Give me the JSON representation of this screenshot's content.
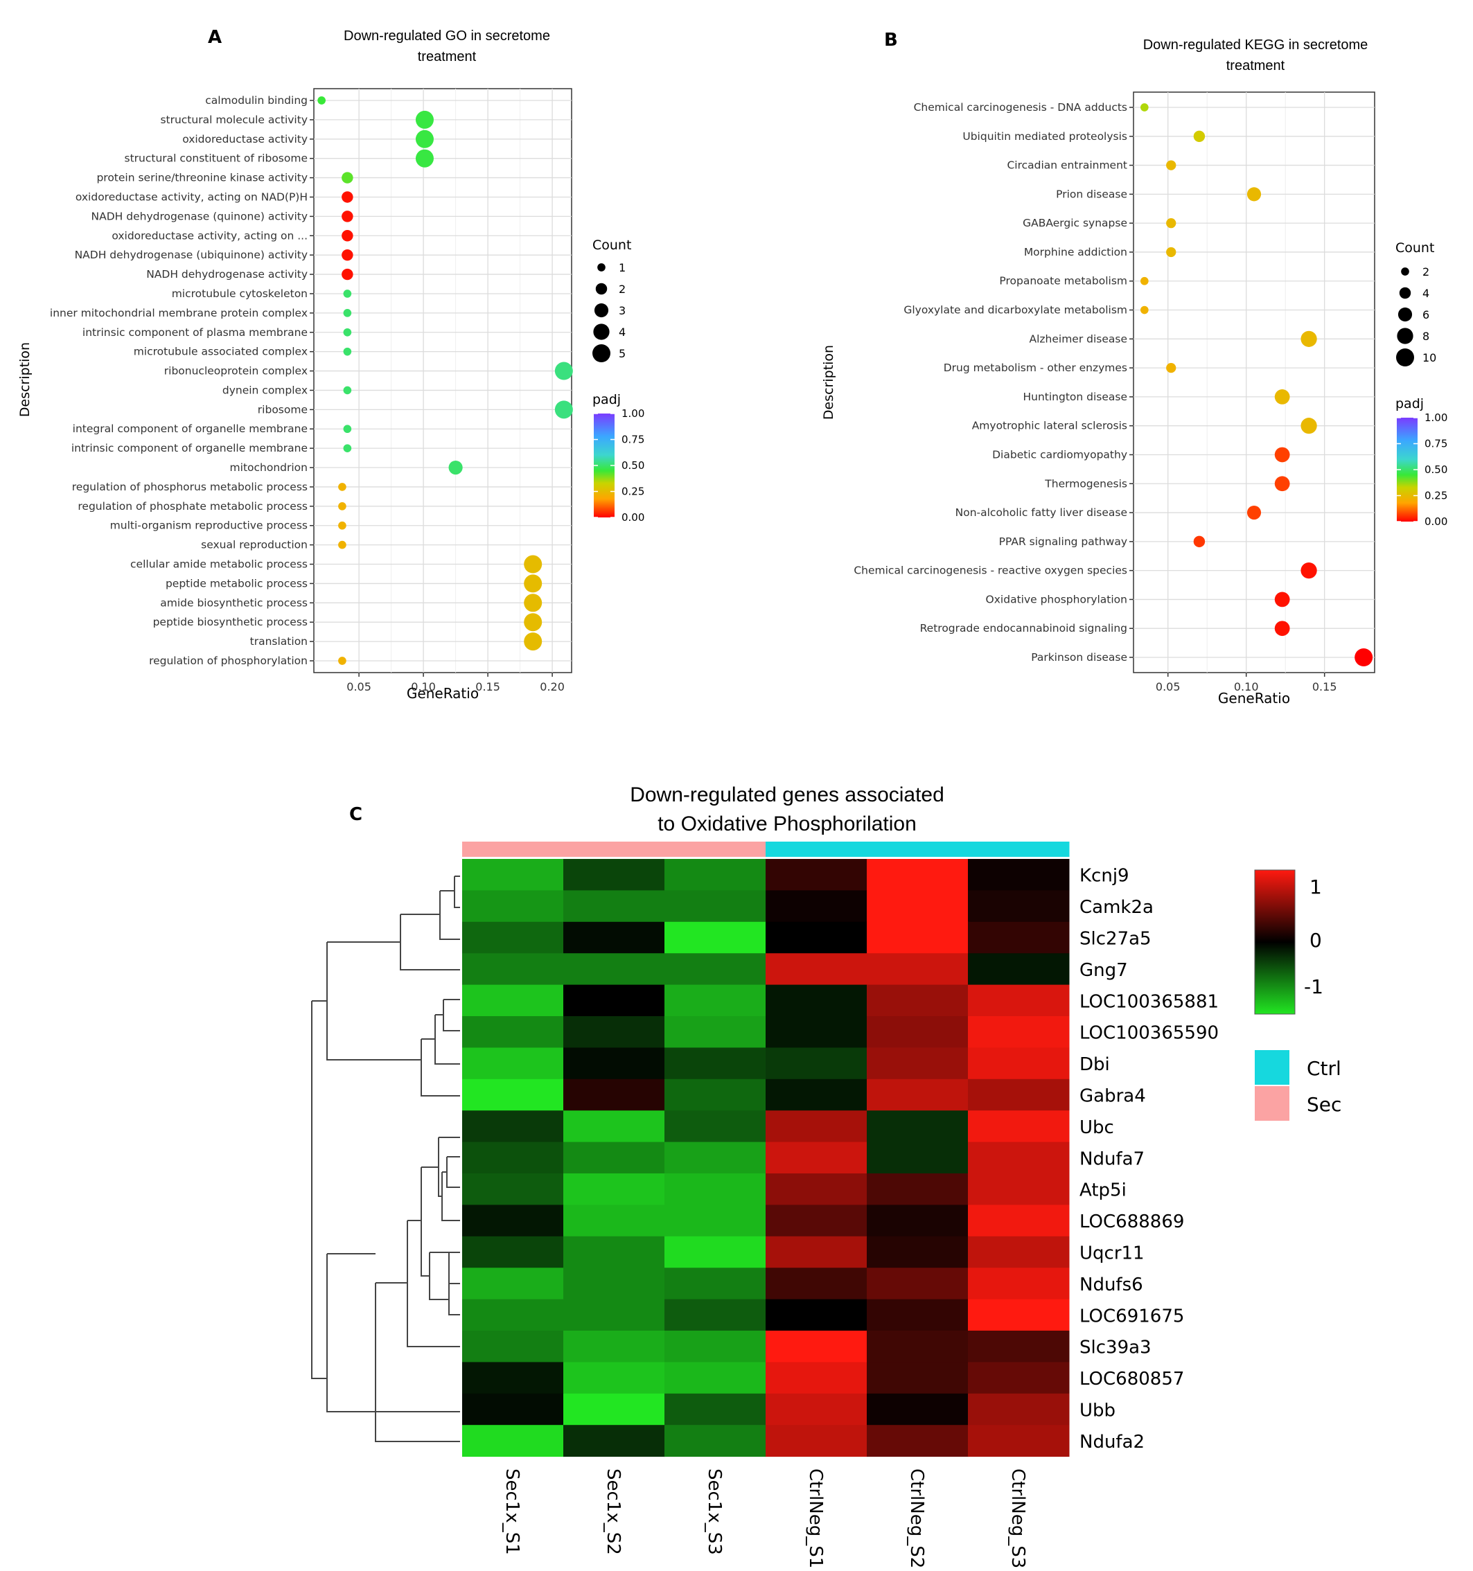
{
  "panel_letters": {
    "a": "A",
    "b": "B",
    "c": "C"
  },
  "colors": {
    "padj_gradient": [
      "#ff0000",
      "#ffa500",
      "#c8d400",
      "#38e838",
      "#3dd6ce",
      "#3ba7ff",
      "#7a3cff"
    ],
    "heat_low": "#22e622",
    "heat_mid": "#000000",
    "heat_high": "#ff1a10",
    "ctrl": "#16d8de",
    "sec": "#fba3a3"
  },
  "chart_data": [
    {
      "id": "A",
      "type": "scatter",
      "title_lines": [
        "Down-regulated GO in secretome",
        "treatment"
      ],
      "xlabel": "GeneRatio",
      "ylabel": "Description",
      "xlim": [
        0.015,
        0.215
      ],
      "xticks": [
        0.05,
        0.1,
        0.15,
        0.2
      ],
      "xtick_labels": [
        "0.05",
        "0.10",
        "0.15",
        "0.20"
      ],
      "count_legend": {
        "title": "Count",
        "values": [
          1,
          2,
          3,
          4,
          5
        ],
        "labels": [
          "1",
          "2",
          "3",
          "4",
          "5"
        ],
        "scale_max": 5
      },
      "padj_legend": {
        "title": "padj",
        "ticks": [
          1.0,
          0.75,
          0.5,
          0.25,
          0.0
        ],
        "labels": [
          "1.00",
          "0.75",
          "0.50",
          "0.25",
          "0.00"
        ]
      },
      "points": [
        {
          "term": "calmodulin binding",
          "ratio": 0.021,
          "count": 1,
          "padj": 0.45
        },
        {
          "term": "structural molecule activity",
          "ratio": 0.101,
          "count": 5,
          "padj": 0.46
        },
        {
          "term": "oxidoreductase activity",
          "ratio": 0.101,
          "count": 5,
          "padj": 0.46
        },
        {
          "term": "structural constituent of ribosome",
          "ratio": 0.101,
          "count": 5,
          "padj": 0.46
        },
        {
          "term": "protein serine/threonine kinase activity",
          "ratio": 0.041,
          "count": 2,
          "padj": 0.42
        },
        {
          "term": "oxidoreductase activity, acting on NAD(P)H",
          "ratio": 0.041,
          "count": 2,
          "padj": 0.02
        },
        {
          "term": "NADH dehydrogenase (quinone) activity",
          "ratio": 0.041,
          "count": 2,
          "padj": 0.02
        },
        {
          "term": "oxidoreductase activity, acting on ...",
          "ratio": 0.041,
          "count": 2,
          "padj": 0.02
        },
        {
          "term": "NADH dehydrogenase (ubiquinone) activity",
          "ratio": 0.041,
          "count": 2,
          "padj": 0.02
        },
        {
          "term": "NADH dehydrogenase activity",
          "ratio": 0.041,
          "count": 2,
          "padj": 0.02
        },
        {
          "term": "microtubule cytoskeleton",
          "ratio": 0.041,
          "count": 1,
          "padj": 0.5
        },
        {
          "term": "inner mitochondrial membrane protein complex",
          "ratio": 0.041,
          "count": 1,
          "padj": 0.5
        },
        {
          "term": "intrinsic component of plasma membrane",
          "ratio": 0.041,
          "count": 1,
          "padj": 0.5
        },
        {
          "term": "microtubule associated complex",
          "ratio": 0.041,
          "count": 1,
          "padj": 0.5
        },
        {
          "term": "ribonucleoprotein complex",
          "ratio": 0.209,
          "count": 5,
          "padj": 0.52
        },
        {
          "term": "dynein complex",
          "ratio": 0.041,
          "count": 1,
          "padj": 0.5
        },
        {
          "term": "ribosome",
          "ratio": 0.209,
          "count": 5,
          "padj": 0.52
        },
        {
          "term": "integral component of organelle membrane",
          "ratio": 0.041,
          "count": 1,
          "padj": 0.5
        },
        {
          "term": "intrinsic component of organelle membrane",
          "ratio": 0.041,
          "count": 1,
          "padj": 0.5
        },
        {
          "term": "mitochondrion",
          "ratio": 0.125,
          "count": 3,
          "padj": 0.5
        },
        {
          "term": "regulation of phosphorus metabolic process",
          "ratio": 0.037,
          "count": 1,
          "padj": 0.22
        },
        {
          "term": "regulation of phosphate metabolic process",
          "ratio": 0.037,
          "count": 1,
          "padj": 0.22
        },
        {
          "term": "multi-organism reproductive process",
          "ratio": 0.037,
          "count": 1,
          "padj": 0.22
        },
        {
          "term": "sexual reproduction",
          "ratio": 0.037,
          "count": 1,
          "padj": 0.22
        },
        {
          "term": "cellular amide metabolic process",
          "ratio": 0.185,
          "count": 5,
          "padj": 0.25
        },
        {
          "term": "peptide metabolic process",
          "ratio": 0.185,
          "count": 5,
          "padj": 0.25
        },
        {
          "term": "amide biosynthetic process",
          "ratio": 0.185,
          "count": 5,
          "padj": 0.25
        },
        {
          "term": "peptide biosynthetic process",
          "ratio": 0.185,
          "count": 5,
          "padj": 0.25
        },
        {
          "term": "translation",
          "ratio": 0.185,
          "count": 5,
          "padj": 0.25
        },
        {
          "term": "regulation of phosphorylation",
          "ratio": 0.037,
          "count": 1,
          "padj": 0.22
        }
      ]
    },
    {
      "id": "B",
      "type": "scatter",
      "title_lines": [
        "Down-regulated KEGG in secretome",
        "treatment"
      ],
      "xlabel": "GeneRatio",
      "ylabel": "Description",
      "xlim": [
        0.028,
        0.182
      ],
      "xticks": [
        0.05,
        0.1,
        0.15
      ],
      "xtick_labels": [
        "0.05",
        "0.10",
        "0.15"
      ],
      "count_legend": {
        "title": "Count",
        "values": [
          2,
          4,
          6,
          8,
          10
        ],
        "labels": [
          "2",
          "4",
          "6",
          "8",
          "10"
        ],
        "scale_max": 10
      },
      "padj_legend": {
        "title": "padj",
        "ticks": [
          1.0,
          0.75,
          0.5,
          0.25,
          0.0
        ],
        "labels": [
          "1.00",
          "0.75",
          "0.50",
          "0.25",
          "0.00"
        ]
      },
      "points": [
        {
          "term": "Chemical carcinogenesis - DNA adducts",
          "ratio": 0.035,
          "count": 2,
          "padj": 0.35
        },
        {
          "term": "Ubiquitin mediated proteolysis",
          "ratio": 0.07,
          "count": 4,
          "padj": 0.3
        },
        {
          "term": "Circadian entrainment",
          "ratio": 0.052,
          "count": 3,
          "padj": 0.24
        },
        {
          "term": "Prion disease",
          "ratio": 0.105,
          "count": 6,
          "padj": 0.24
        },
        {
          "term": "GABAergic synapse",
          "ratio": 0.052,
          "count": 3,
          "padj": 0.24
        },
        {
          "term": "Morphine addiction",
          "ratio": 0.052,
          "count": 3,
          "padj": 0.24
        },
        {
          "term": "Propanoate metabolism",
          "ratio": 0.035,
          "count": 2,
          "padj": 0.22
        },
        {
          "term": "Glyoxylate and dicarboxylate metabolism",
          "ratio": 0.035,
          "count": 2,
          "padj": 0.22
        },
        {
          "term": "Alzheimer disease",
          "ratio": 0.14,
          "count": 8,
          "padj": 0.24
        },
        {
          "term": "Drug metabolism - other enzymes",
          "ratio": 0.052,
          "count": 3,
          "padj": 0.22
        },
        {
          "term": "Huntington disease",
          "ratio": 0.123,
          "count": 7,
          "padj": 0.24
        },
        {
          "term": "Amyotrophic lateral sclerosis",
          "ratio": 0.14,
          "count": 8,
          "padj": 0.24
        },
        {
          "term": "Diabetic cardiomyopathy",
          "ratio": 0.123,
          "count": 7,
          "padj": 0.07
        },
        {
          "term": "Thermogenesis",
          "ratio": 0.123,
          "count": 7,
          "padj": 0.07
        },
        {
          "term": "Non-alcoholic fatty liver disease",
          "ratio": 0.105,
          "count": 6,
          "padj": 0.07
        },
        {
          "term": "PPAR signaling pathway",
          "ratio": 0.07,
          "count": 4,
          "padj": 0.06
        },
        {
          "term": "Chemical carcinogenesis - reactive oxygen species",
          "ratio": 0.14,
          "count": 8,
          "padj": 0.02
        },
        {
          "term": "Oxidative phosphorylation",
          "ratio": 0.123,
          "count": 7,
          "padj": 0.02
        },
        {
          "term": "Retrograde endocannabinoid signaling",
          "ratio": 0.123,
          "count": 7,
          "padj": 0.02
        },
        {
          "term": "Parkinson disease",
          "ratio": 0.175,
          "count": 10,
          "padj": 0.0
        }
      ]
    },
    {
      "id": "C",
      "type": "heatmap",
      "title_lines": [
        "Down-regulated genes associated",
        "to Oxidative Phosphorilation"
      ],
      "columns": [
        "Sec1x_S1",
        "Sec1x_S2",
        "Sec1x_S3",
        "CtrlNeg_S1",
        "CtrlNeg_S2",
        "CtrlNeg_S3"
      ],
      "column_groups": [
        "Sec",
        "Sec",
        "Sec",
        "Ctrl",
        "Ctrl",
        "Ctrl"
      ],
      "rows": [
        "Kcnj9",
        "Camk2a",
        "Slc27a5",
        "Gng7",
        "LOC100365881",
        "LOC100365590",
        "Dbi",
        "Gabra4",
        "Ubc",
        "Ndufa7",
        "Atp5i",
        "LOC688869",
        "Uqcr11",
        "Ndufs6",
        "LOC691675",
        "Slc39a3",
        "LOC680857",
        "Ubb",
        "Ndufa2"
      ],
      "values": [
        [
          -0.75,
          -0.3,
          -0.6,
          0.2,
          1.0,
          0.05
        ],
        [
          -0.65,
          -0.55,
          -0.55,
          0.05,
          1.0,
          0.1
        ],
        [
          -0.45,
          -0.05,
          -1.0,
          0.0,
          1.0,
          0.2
        ],
        [
          -0.55,
          -0.55,
          -0.55,
          0.8,
          0.8,
          -0.1
        ],
        [
          -0.85,
          0.0,
          -0.75,
          -0.1,
          0.6,
          0.85
        ],
        [
          -0.6,
          -0.2,
          -0.7,
          -0.1,
          0.55,
          0.95
        ],
        [
          -0.85,
          -0.05,
          -0.3,
          -0.25,
          0.6,
          0.9
        ],
        [
          -1.0,
          0.15,
          -0.45,
          -0.1,
          0.75,
          0.65
        ],
        [
          -0.25,
          -0.85,
          -0.4,
          0.65,
          -0.2,
          0.95
        ],
        [
          -0.35,
          -0.6,
          -0.7,
          0.8,
          -0.2,
          0.8
        ],
        [
          -0.4,
          -0.85,
          -0.8,
          0.55,
          0.3,
          0.8
        ],
        [
          -0.1,
          -0.8,
          -0.8,
          0.35,
          0.1,
          0.95
        ],
        [
          -0.3,
          -0.6,
          -0.95,
          0.65,
          0.15,
          0.75
        ],
        [
          -0.75,
          -0.6,
          -0.55,
          0.25,
          0.4,
          0.9
        ],
        [
          -0.6,
          -0.6,
          -0.4,
          0.0,
          0.2,
          1.0
        ],
        [
          -0.55,
          -0.75,
          -0.7,
          1.0,
          0.25,
          0.3
        ],
        [
          -0.1,
          -0.85,
          -0.8,
          0.9,
          0.25,
          0.4
        ],
        [
          -0.05,
          -1.0,
          -0.4,
          0.8,
          0.05,
          0.6
        ],
        [
          -0.95,
          -0.2,
          -0.55,
          0.75,
          0.4,
          0.65
        ]
      ],
      "color_legend": {
        "labels": [
          "1",
          "0",
          "-1"
        ],
        "values": [
          1,
          0,
          -1
        ]
      },
      "group_legend": [
        {
          "label": "Ctrl"
        },
        {
          "label": "Sec"
        }
      ]
    }
  ]
}
